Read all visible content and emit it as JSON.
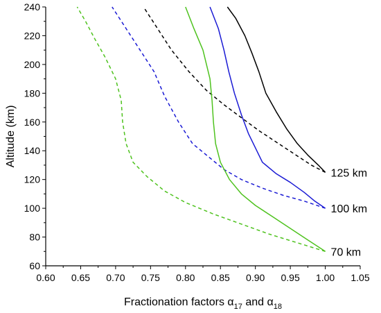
{
  "chart_data": {
    "type": "line",
    "xlabel": {
      "main": "Fractionation factors ",
      "alpha": "α",
      "sub17": "17",
      "and": " and ",
      "sub18": "18"
    },
    "ylabel": "Altitude (km)",
    "xlim": [
      0.6,
      1.05
    ],
    "ylim": [
      60,
      240
    ],
    "xticks": [
      "0.60",
      "0.65",
      "0.70",
      "0.75",
      "0.80",
      "0.85",
      "0.90",
      "0.95",
      "1.00",
      "1.05"
    ],
    "yticks": [
      "60",
      "80",
      "100",
      "120",
      "140",
      "160",
      "180",
      "200",
      "220",
      "240"
    ],
    "grid": false,
    "curve_labels": [
      {
        "text": "125 km",
        "x": 1.0,
        "y": 125
      },
      {
        "text": "100 km",
        "x": 1.0,
        "y": 100
      },
      {
        "text": "70 km",
        "x": 1.0,
        "y": 70
      }
    ],
    "series": [
      {
        "kind": "alpha17",
        "color": "#000000",
        "dash": false,
        "points": [
          [
            1.0,
            125
          ],
          [
            0.99,
            130
          ],
          [
            0.975,
            137
          ],
          [
            0.96,
            145
          ],
          [
            0.945,
            155
          ],
          [
            0.93,
            167
          ],
          [
            0.915,
            180
          ],
          [
            0.905,
            195
          ],
          [
            0.895,
            208
          ],
          [
            0.885,
            220
          ],
          [
            0.872,
            232
          ],
          [
            0.86,
            240
          ]
        ]
      },
      {
        "kind": "alpha18",
        "color": "#000000",
        "dash": true,
        "points": [
          [
            1.0,
            125
          ],
          [
            0.98,
            130
          ],
          [
            0.955,
            138
          ],
          [
            0.93,
            146
          ],
          [
            0.905,
            154
          ],
          [
            0.88,
            163
          ],
          [
            0.855,
            172
          ],
          [
            0.83,
            182
          ],
          [
            0.805,
            195
          ],
          [
            0.78,
            210
          ],
          [
            0.76,
            225
          ],
          [
            0.74,
            240
          ]
        ]
      },
      {
        "kind": "alpha17",
        "color": "#1a1ad4",
        "dash": false,
        "points": [
          [
            1.0,
            100
          ],
          [
            0.985,
            105
          ],
          [
            0.97,
            111
          ],
          [
            0.95,
            118
          ],
          [
            0.93,
            124
          ],
          [
            0.91,
            132
          ],
          [
            0.9,
            142
          ],
          [
            0.89,
            152
          ],
          [
            0.88,
            165
          ],
          [
            0.87,
            180
          ],
          [
            0.862,
            195
          ],
          [
            0.855,
            210
          ],
          [
            0.847,
            225
          ],
          [
            0.835,
            240
          ]
        ]
      },
      {
        "kind": "alpha18",
        "color": "#1a1ad4",
        "dash": true,
        "points": [
          [
            1.0,
            100
          ],
          [
            0.97,
            105
          ],
          [
            0.94,
            109
          ],
          [
            0.91,
            114
          ],
          [
            0.88,
            120
          ],
          [
            0.855,
            127
          ],
          [
            0.835,
            135
          ],
          [
            0.81,
            145
          ],
          [
            0.79,
            160
          ],
          [
            0.77,
            178
          ],
          [
            0.755,
            195
          ],
          [
            0.735,
            210
          ],
          [
            0.715,
            225
          ],
          [
            0.695,
            240
          ]
        ]
      },
      {
        "kind": "alpha17",
        "color": "#4ec21e",
        "dash": false,
        "points": [
          [
            1.0,
            70
          ],
          [
            0.975,
            78
          ],
          [
            0.95,
            86
          ],
          [
            0.925,
            94
          ],
          [
            0.9,
            102
          ],
          [
            0.88,
            110
          ],
          [
            0.863,
            120
          ],
          [
            0.85,
            132
          ],
          [
            0.843,
            145
          ],
          [
            0.84,
            160
          ],
          [
            0.838,
            175
          ],
          [
            0.835,
            190
          ],
          [
            0.825,
            210
          ],
          [
            0.812,
            225
          ],
          [
            0.8,
            240
          ]
        ]
      },
      {
        "kind": "alpha18",
        "color": "#4ec21e",
        "dash": true,
        "points": [
          [
            1.0,
            70
          ],
          [
            0.96,
            76
          ],
          [
            0.92,
            82
          ],
          [
            0.88,
            89
          ],
          [
            0.84,
            96
          ],
          [
            0.8,
            104
          ],
          [
            0.77,
            112
          ],
          [
            0.745,
            122
          ],
          [
            0.725,
            132
          ],
          [
            0.715,
            145
          ],
          [
            0.71,
            160
          ],
          [
            0.708,
            175
          ],
          [
            0.7,
            190
          ],
          [
            0.685,
            205
          ],
          [
            0.67,
            218
          ],
          [
            0.657,
            230
          ],
          [
            0.645,
            240
          ]
        ]
      }
    ]
  }
}
